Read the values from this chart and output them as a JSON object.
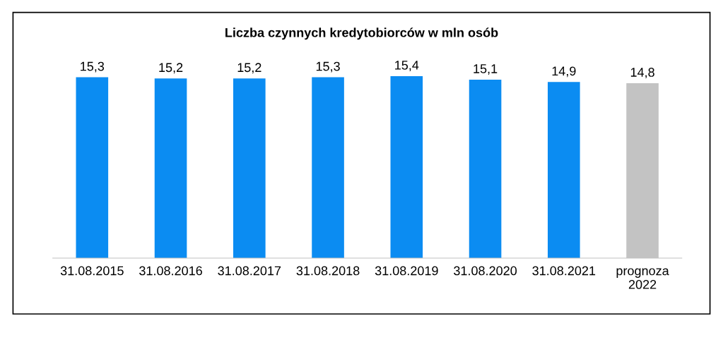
{
  "chart_data": {
    "type": "bar",
    "title": "Liczba czynnych kredytobiorców w mln osób",
    "categories": [
      "31.08.2015",
      "31.08.2016",
      "31.08.2017",
      "31.08.2018",
      "31.08.2019",
      "31.08.2020",
      "31.08.2021",
      "prognoza\n2022"
    ],
    "values": [
      15.3,
      15.2,
      15.2,
      15.3,
      15.4,
      15.1,
      14.9,
      14.8
    ],
    "value_labels": [
      "15,3",
      "15,2",
      "15,2",
      "15,3",
      "15,4",
      "15,1",
      "14,9",
      "14,8"
    ],
    "colors": [
      "#0b8cf2",
      "#0b8cf2",
      "#0b8cf2",
      "#0b8cf2",
      "#0b8cf2",
      "#0b8cf2",
      "#0b8cf2",
      "#c3c3c3"
    ],
    "grid": false,
    "legend": false
  }
}
